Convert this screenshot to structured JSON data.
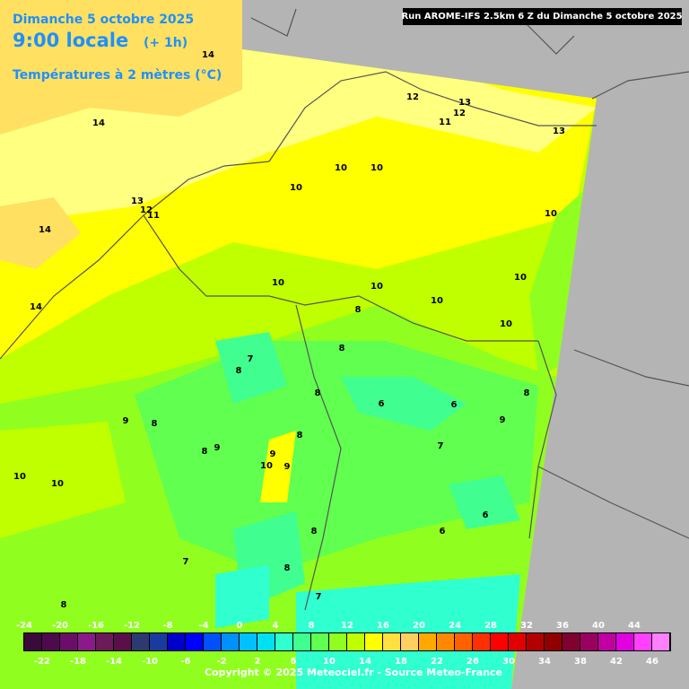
{
  "header": {
    "date": "Dimanche 5 octobre 2025",
    "time": "9:00 locale",
    "offset": "(+ 1h)",
    "field": "Températures à 2 mètres (°C)",
    "run": "Run AROME-IFS 2.5km 6 Z du Dimanche 5 octobre 2025"
  },
  "legend": {
    "upper_labels": [
      -24,
      -20,
      -16,
      -12,
      -8,
      -4,
      0,
      4,
      8,
      12,
      16,
      20,
      24,
      28,
      32,
      36,
      40,
      44
    ],
    "lower_labels": [
      -22,
      -18,
      -14,
      -10,
      -6,
      -2,
      2,
      6,
      10,
      14,
      18,
      22,
      26,
      30,
      34,
      38,
      42,
      46
    ],
    "colors": [
      "#3a0a3a",
      "#4d0b4d",
      "#6a0e6a",
      "#8a1a8a",
      "#6b1a5a",
      "#5a0f4a",
      "#2c3a70",
      "#1a3aa0",
      "#0000cc",
      "#0000ff",
      "#0050ff",
      "#0090ff",
      "#00c0ff",
      "#00e0f0",
      "#30ffd0",
      "#40ff90",
      "#60ff50",
      "#90ff20",
      "#c0ff00",
      "#ffff00",
      "#ffe040",
      "#ffd060",
      "#ffa800",
      "#ff8800",
      "#ff6000",
      "#ff3000",
      "#ff0000",
      "#e00000",
      "#b00000",
      "#900000",
      "#800030",
      "#9a0060",
      "#c000a0",
      "#e000e0",
      "#ff40ff",
      "#ff80ff"
    ]
  },
  "contour_labels": [
    14,
    14,
    14,
    14,
    12,
    13,
    12,
    11,
    13,
    13,
    12,
    11,
    10,
    10,
    10,
    10,
    10,
    10,
    10,
    10,
    10,
    8,
    8,
    8,
    7,
    8,
    9,
    8,
    9,
    8,
    9,
    10,
    9,
    8,
    6,
    6,
    7,
    9,
    8,
    10,
    10,
    8,
    6,
    7,
    8,
    6,
    7,
    8
  ],
  "footer": {
    "copyright": "Copyright © 2025 Meteociel.fr - Source Meteo-France"
  }
}
